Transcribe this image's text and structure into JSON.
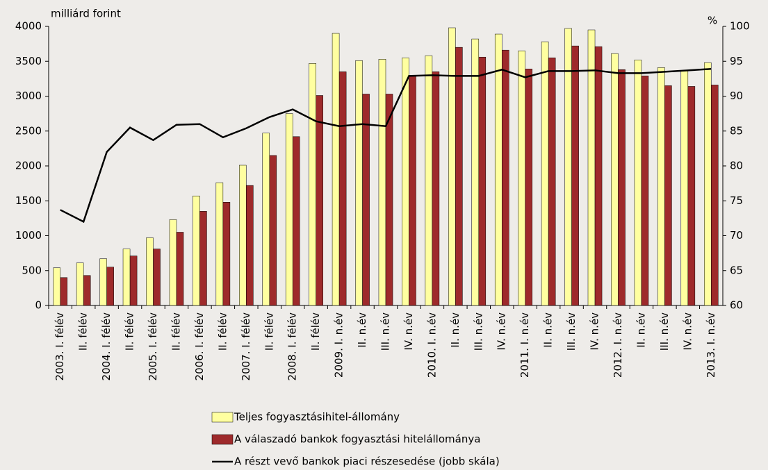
{
  "chart_data": {
    "type": "bar-line",
    "y_label": "milliárd forint",
    "y2_label": "%",
    "categories": [
      "2003. I. félév",
      "II. félév",
      "2004. I. félév",
      "II. félév",
      "2005. I. félév",
      "II. félév",
      "2006. I. félév",
      "II. félév",
      "2007. I. félév",
      "II. félév",
      "2008. I. félév",
      "II. félév",
      "2009. I. n.év",
      "II. n.év",
      "III. n.év",
      "IV. n.év",
      "2010. I. n.év",
      "II. n.év",
      "III. n.év",
      "IV. n.év",
      "2011. I. n.év",
      "II. n.év",
      "III. n.év",
      "IV. n.év",
      "2012. I. n.év",
      "II. n.év",
      "III. n.év",
      "IV. n.év",
      "2013. I. n.év"
    ],
    "series": [
      {
        "name": "Teljes fogyasztásihitel-állomány",
        "color": "#ffffa0",
        "kind": "bar",
        "values": [
          540,
          610,
          670,
          810,
          970,
          1230,
          1570,
          1760,
          2010,
          2470,
          2750,
          3470,
          3900,
          3510,
          3530,
          3550,
          3580,
          3980,
          3820,
          3890,
          3650,
          3780,
          3970,
          3950,
          3610,
          3520,
          3410,
          3370,
          3480
        ]
      },
      {
        "name": "A válaszadó bankok fogyasztási hitelállománya",
        "color": "#9e2a2b",
        "kind": "bar",
        "values": [
          400,
          430,
          550,
          710,
          810,
          1050,
          1350,
          1480,
          1720,
          2150,
          2420,
          3010,
          3350,
          3030,
          3030,
          3290,
          3350,
          3700,
          3560,
          3660,
          3390,
          3550,
          3720,
          3710,
          3380,
          3290,
          3150,
          3140,
          3160
        ]
      },
      {
        "name": "A részt vevő bankok piaci részesedése (jobb skála)",
        "color": "#000000",
        "kind": "line",
        "axis": "y2",
        "values": [
          73.7,
          72.0,
          82.0,
          85.5,
          83.7,
          85.9,
          86.0,
          84.1,
          85.4,
          87.0,
          88.1,
          86.4,
          85.7,
          86.0,
          85.7,
          92.9,
          93.0,
          92.9,
          92.9,
          93.8,
          92.7,
          93.6,
          93.6,
          93.7,
          93.3,
          93.3,
          93.5,
          93.7,
          93.9
        ]
      }
    ],
    "ylim": [
      0,
      4000
    ],
    "yticks": [
      0,
      500,
      1000,
      1500,
      2000,
      2500,
      3000,
      3500,
      4000
    ],
    "y2lim": [
      60,
      100
    ],
    "y2ticks": [
      60,
      65,
      70,
      75,
      80,
      85,
      90,
      95,
      100
    ],
    "grid": false
  }
}
